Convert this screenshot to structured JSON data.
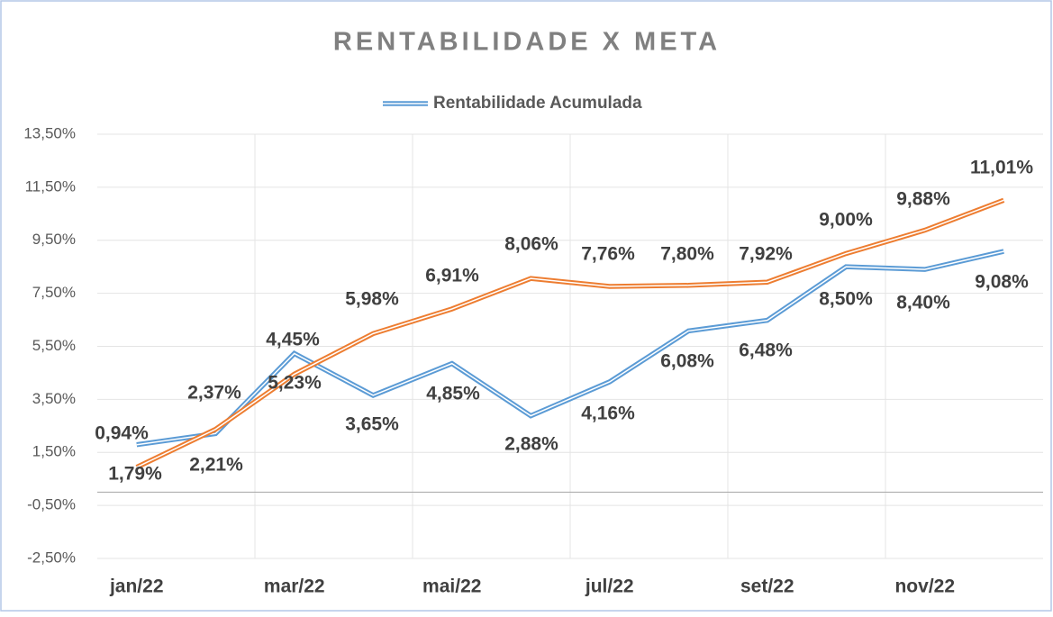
{
  "chart_data": {
    "type": "line",
    "title": "RENTABILIDADE X META",
    "categories": [
      "jan/22",
      null,
      "mar/22",
      null,
      "mai/22",
      null,
      "jul/22",
      null,
      "set/22",
      null,
      "nov/22",
      null
    ],
    "series": [
      {
        "name": "Rentabilidade Acumulada",
        "color": "#5b9bd5",
        "values": [
          1.79,
          2.21,
          5.23,
          3.65,
          4.85,
          2.88,
          4.16,
          6.08,
          6.48,
          8.5,
          8.4,
          9.08
        ],
        "value_labels": [
          "1,79%",
          "2,21%",
          "5,23%",
          "3,65%",
          "4,85%",
          "2,88%",
          "4,16%",
          "6,08%",
          "6,48%",
          "8,50%",
          "8,40%",
          "9,08%"
        ]
      },
      {
        "color": "#ed7d31",
        "values": [
          0.94,
          2.37,
          4.45,
          5.98,
          6.91,
          8.06,
          7.76,
          7.8,
          7.92,
          9.0,
          9.88,
          11.01
        ],
        "value_labels": [
          "0,94%",
          "2,37%",
          "4,45%",
          "5,98%",
          "6,91%",
          "8,06%",
          "7,76%",
          "7,80%",
          "7,92%",
          "9,00%",
          "9,88%",
          "11,01%"
        ]
      }
    ],
    "ylim": [
      -2.5,
      13.5
    ],
    "yticks": [
      {
        "value": -2.5,
        "label": "-2,50%"
      },
      {
        "value": -0.5,
        "label": "-0,50%"
      },
      {
        "value": 1.5,
        "label": "1,50%"
      },
      {
        "value": 3.5,
        "label": "3,50%"
      },
      {
        "value": 5.5,
        "label": "5,50%"
      },
      {
        "value": 7.5,
        "label": "7,50%"
      },
      {
        "value": 9.5,
        "label": "9,50%"
      },
      {
        "value": 11.5,
        "label": "11,50%"
      },
      {
        "value": 13.5,
        "label": "13,50%"
      }
    ],
    "grid": true,
    "legend": "top"
  }
}
